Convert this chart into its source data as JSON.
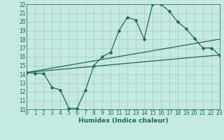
{
  "xlabel": "Humidex (Indice chaleur)",
  "bg_color": "#c5e8e0",
  "line_color": "#1a6b5a",
  "grid_color": "#a8ccc6",
  "xlim": [
    0,
    23
  ],
  "ylim": [
    10,
    22
  ],
  "xticks": [
    0,
    1,
    2,
    3,
    4,
    5,
    6,
    7,
    8,
    9,
    10,
    11,
    12,
    13,
    14,
    15,
    16,
    17,
    18,
    19,
    20,
    21,
    22,
    23
  ],
  "yticks": [
    10,
    11,
    12,
    13,
    14,
    15,
    16,
    17,
    18,
    19,
    20,
    21,
    22
  ],
  "line1_x": [
    0,
    1,
    2,
    3,
    4,
    5,
    6,
    7,
    8,
    9,
    10,
    11,
    12,
    13,
    14,
    15,
    16,
    17,
    18,
    19,
    20,
    21,
    22,
    23
  ],
  "line1_y": [
    14.2,
    14.1,
    14.1,
    12.5,
    12.2,
    10.1,
    10.1,
    12.2,
    15.0,
    16.0,
    16.5,
    19.0,
    20.5,
    20.2,
    18.0,
    22.0,
    22.0,
    21.2,
    20.0,
    19.2,
    18.1,
    17.0,
    17.0,
    16.2
  ],
  "line2_x": [
    0,
    23
  ],
  "line2_y": [
    14.2,
    18.0
  ],
  "line3_x": [
    0,
    23
  ],
  "line3_y": [
    14.2,
    16.2
  ],
  "markersize": 2.5,
  "linewidth": 0.9,
  "tick_fontsize": 5.5,
  "xlabel_fontsize": 6.5
}
